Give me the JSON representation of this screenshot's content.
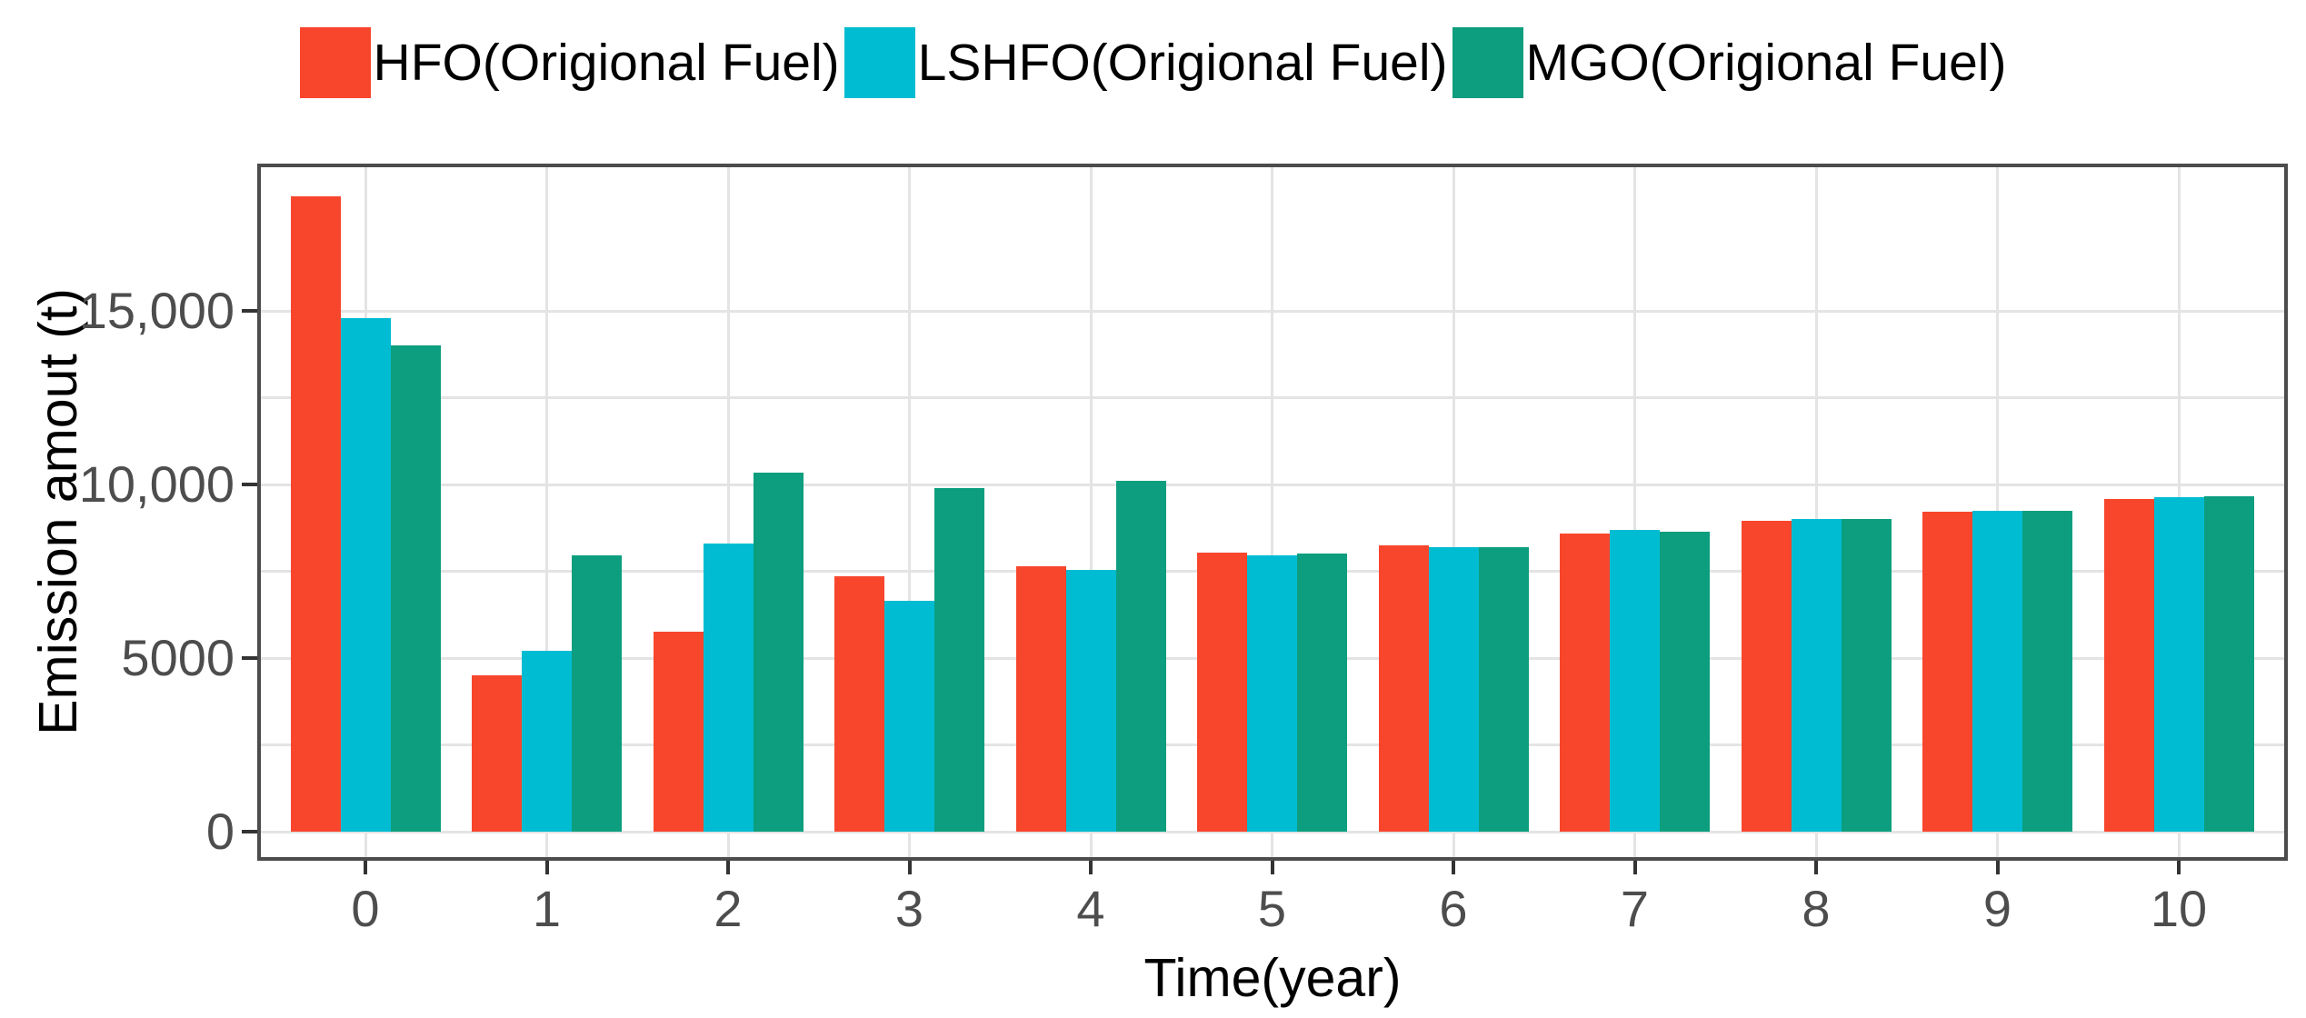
{
  "figure": {
    "legend": {
      "position": "top",
      "items": [
        {
          "label": "HFO(Origional Fuel)",
          "color": "#F8462D"
        },
        {
          "label": "LSHFO(Origional Fuel)",
          "color": "#00BCD2"
        },
        {
          "label": "MGO(Origional Fuel)",
          "color": "#0C9E7E"
        }
      ]
    },
    "y_axis": {
      "title": "Emission amout (t)",
      "tick_values": [
        0,
        5000,
        10000,
        15000
      ],
      "tick_labels": [
        "0",
        "5000",
        "10,000",
        "15,000"
      ]
    },
    "x_axis": {
      "title": "Time(year)",
      "tick_labels": [
        "0",
        "1",
        "2",
        "3",
        "4",
        "5",
        "6",
        "7",
        "8",
        "9",
        "10"
      ]
    }
  },
  "chart_data": {
    "type": "bar",
    "title": "",
    "xlabel": "Time(year)",
    "ylabel": "Emission amout (t)",
    "categories": [
      0,
      1,
      2,
      3,
      4,
      5,
      6,
      7,
      8,
      9,
      10
    ],
    "series": [
      {
        "name": "HFO(Origional Fuel)",
        "color": "#F8462D",
        "values": [
          18300,
          4500,
          5750,
          7350,
          7650,
          8050,
          8250,
          8600,
          8950,
          9220,
          9580
        ]
      },
      {
        "name": "LSHFO(Origional Fuel)",
        "color": "#00BCD2",
        "values": [
          14800,
          5200,
          8300,
          6650,
          7550,
          7950,
          8200,
          8680,
          9000,
          9250,
          9640
        ]
      },
      {
        "name": "MGO(Origional Fuel)",
        "color": "#0C9E7E",
        "values": [
          14000,
          7950,
          10350,
          9900,
          10100,
          8000,
          8200,
          8650,
          9000,
          9250,
          9650
        ]
      }
    ],
    "ylim": [
      0,
      19240
    ],
    "grid": {
      "horizontal_interval": 2500,
      "vertical_at_each_category": true,
      "color": "#e4e4e4"
    },
    "legend_position": "top"
  }
}
